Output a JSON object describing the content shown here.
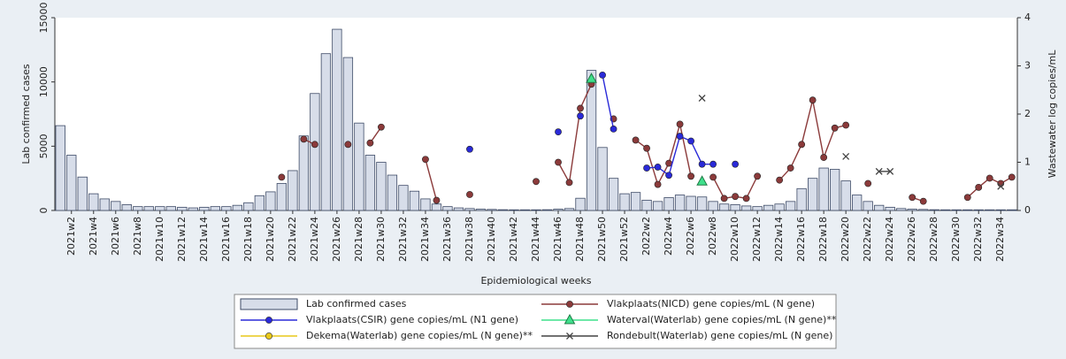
{
  "chart_data": {
    "type": "bar",
    "y_label": "Lab confirmed cases",
    "y2_label": "Wastewater log copies/mL",
    "x_label": "Epidemiological weeks",
    "categories": [
      null,
      "2021w2",
      null,
      "2021w4",
      null,
      "2021w6",
      null,
      "2021w8",
      null,
      "2021w10",
      null,
      "2021w12",
      null,
      "2021w14",
      null,
      "2021w16",
      null,
      "2021w18",
      null,
      "2021w20",
      null,
      "2021w22",
      null,
      "2021w24",
      null,
      "2021w26",
      null,
      "2021w28",
      null,
      "2021w30",
      null,
      "2021w32",
      null,
      "2021w34",
      null,
      "2021w36",
      null,
      "2021w38",
      null,
      "2021w40",
      null,
      "2021w42",
      null,
      "2021w44",
      null,
      "2021w46",
      null,
      "2021w48",
      null,
      "2021w50",
      null,
      "2021w52",
      null,
      "2022w2",
      null,
      "2022w4",
      null,
      "2022w6",
      null,
      "2022w8",
      null,
      "2022w10",
      null,
      "2022w12",
      null,
      "2022w14",
      null,
      "2022w16",
      null,
      "2022w18",
      null,
      "2022w20",
      null,
      "2022w22",
      null,
      "2022w24",
      null,
      "2022w26",
      null,
      "2022w28",
      null,
      "2022w30",
      null,
      "2022w32",
      null,
      "2022w34",
      null
    ],
    "ylim": [
      0,
      15000
    ],
    "yticks": [
      0,
      5000,
      10000,
      15000
    ],
    "y2lim": [
      0,
      4
    ],
    "y2ticks": [
      0,
      1,
      2,
      3,
      4
    ],
    "legend": "bottom",
    "series": [
      {
        "name": "Lab confirmed cases",
        "type": "bar",
        "color": "#d7dde9",
        "values": [
          6600,
          4300,
          2600,
          1300,
          900,
          700,
          450,
          300,
          300,
          300,
          300,
          250,
          200,
          250,
          300,
          300,
          400,
          600,
          1150,
          1450,
          2100,
          3100,
          5800,
          9100,
          12200,
          14100,
          11900,
          6800,
          4300,
          3750,
          2750,
          1950,
          1500,
          900,
          500,
          300,
          200,
          150,
          100,
          80,
          60,
          50,
          50,
          50,
          60,
          100,
          150,
          950,
          10900,
          4900,
          2500,
          1300,
          1400,
          800,
          700,
          1000,
          1200,
          1100,
          1050,
          700,
          500,
          450,
          350,
          300,
          400,
          500,
          700,
          1700,
          2500,
          3300,
          3200,
          2300,
          1200,
          700,
          400,
          250,
          150,
          100,
          80,
          60,
          50,
          50,
          50,
          50,
          50,
          50,
          50
        ]
      },
      {
        "name": "Vlakplaats(NICD) gene copies/mL (N gene)",
        "type": "line",
        "axis": "y2",
        "marker": "circle",
        "color": "#8b3a3a",
        "values": [
          null,
          null,
          null,
          null,
          null,
          null,
          null,
          null,
          null,
          null,
          null,
          null,
          null,
          null,
          null,
          null,
          null,
          null,
          null,
          null,
          0.69,
          null,
          1.48,
          1.37,
          null,
          null,
          1.37,
          null,
          1.4,
          1.73,
          null,
          null,
          null,
          1.06,
          0.21,
          null,
          null,
          0.33,
          null,
          null,
          null,
          null,
          null,
          0.6,
          null,
          1.0,
          0.58,
          2.12,
          2.62,
          null,
          1.9,
          null,
          1.46,
          1.29,
          0.54,
          0.98,
          1.79,
          0.71,
          null,
          0.69,
          0.25,
          0.29,
          0.25,
          0.71,
          null,
          0.63,
          0.88,
          1.37,
          2.29,
          1.1,
          1.71,
          1.77,
          null,
          0.56,
          null,
          null,
          null,
          0.27,
          0.19,
          null,
          null,
          null,
          0.27,
          0.48,
          0.67,
          0.56,
          0.69
        ]
      },
      {
        "name": "Vlakplaats(CSIR) gene copies/mL (N1 gene)",
        "type": "line",
        "axis": "y2",
        "marker": "circle",
        "color": "#2a2ad8",
        "values": [
          null,
          null,
          null,
          null,
          null,
          null,
          null,
          null,
          null,
          null,
          null,
          null,
          null,
          null,
          null,
          null,
          null,
          null,
          null,
          null,
          null,
          null,
          null,
          null,
          null,
          null,
          null,
          null,
          null,
          null,
          null,
          null,
          null,
          null,
          null,
          null,
          null,
          1.27,
          null,
          null,
          null,
          null,
          null,
          null,
          null,
          1.63,
          null,
          1.96,
          null,
          2.81,
          1.69,
          null,
          null,
          0.88,
          0.9,
          0.73,
          1.54,
          1.44,
          0.96,
          0.96,
          null,
          0.96,
          null,
          null,
          null,
          null,
          null,
          null,
          null,
          null,
          null,
          null,
          null,
          null,
          null,
          null,
          null,
          null,
          null,
          null,
          null,
          null,
          null,
          null,
          null,
          null,
          null
        ]
      },
      {
        "name": "Waterval(Waterlab) gene copies/mL (N gene)**",
        "type": "line",
        "axis": "y2",
        "marker": "triangle",
        "color": "#3fe08c",
        "values": [
          null,
          null,
          null,
          null,
          null,
          null,
          null,
          null,
          null,
          null,
          null,
          null,
          null,
          null,
          null,
          null,
          null,
          null,
          null,
          null,
          null,
          null,
          null,
          null,
          null,
          null,
          null,
          null,
          null,
          null,
          null,
          null,
          null,
          null,
          null,
          null,
          null,
          null,
          null,
          null,
          null,
          null,
          null,
          null,
          null,
          null,
          null,
          null,
          2.73,
          null,
          null,
          null,
          null,
          null,
          null,
          null,
          null,
          null,
          0.6,
          null,
          null,
          null,
          null,
          null,
          null,
          null,
          null,
          null,
          null,
          null,
          null,
          null,
          null,
          null,
          null,
          null,
          null,
          null,
          null,
          null,
          null,
          null,
          null,
          null,
          null,
          null,
          null
        ]
      },
      {
        "name": "Dekema(Waterlab) gene copies/mL (N gene)**",
        "type": "line",
        "axis": "y2",
        "marker": "circle",
        "color": "#e8c81a",
        "values": [
          null,
          null,
          null,
          null,
          null,
          null,
          null,
          null,
          null,
          null,
          null,
          null,
          null,
          null,
          null,
          null,
          null,
          null,
          null,
          null,
          null,
          null,
          null,
          null,
          null,
          null,
          null,
          null,
          null,
          null,
          null,
          null,
          null,
          null,
          null,
          null,
          null,
          null,
          null,
          null,
          null,
          null,
          null,
          null,
          null,
          null,
          null,
          null,
          null,
          null,
          null,
          null,
          null,
          null,
          null,
          null,
          null,
          null,
          null,
          null,
          null,
          null,
          null,
          null,
          null,
          null,
          null,
          null,
          null,
          null,
          null,
          null,
          null,
          null,
          null,
          null,
          null,
          null,
          null,
          null,
          null,
          null,
          null,
          null,
          null,
          null,
          null
        ]
      },
      {
        "name": "Rondebult(Waterlab) gene copies/mL (N gene)",
        "type": "line",
        "axis": "y2",
        "marker": "x",
        "color": "#444444",
        "values": [
          null,
          null,
          null,
          null,
          null,
          null,
          null,
          null,
          null,
          null,
          null,
          null,
          null,
          null,
          null,
          null,
          null,
          null,
          null,
          null,
          null,
          null,
          null,
          null,
          null,
          null,
          null,
          null,
          null,
          null,
          null,
          null,
          null,
          null,
          null,
          null,
          null,
          null,
          null,
          null,
          null,
          null,
          null,
          null,
          null,
          null,
          null,
          null,
          null,
          null,
          null,
          null,
          null,
          null,
          null,
          null,
          null,
          null,
          2.33,
          null,
          null,
          null,
          null,
          null,
          null,
          null,
          null,
          null,
          null,
          null,
          null,
          1.12,
          null,
          null,
          0.81,
          0.81,
          null,
          null,
          null,
          null,
          null,
          null,
          null,
          null,
          null,
          0.5,
          null
        ]
      }
    ]
  }
}
